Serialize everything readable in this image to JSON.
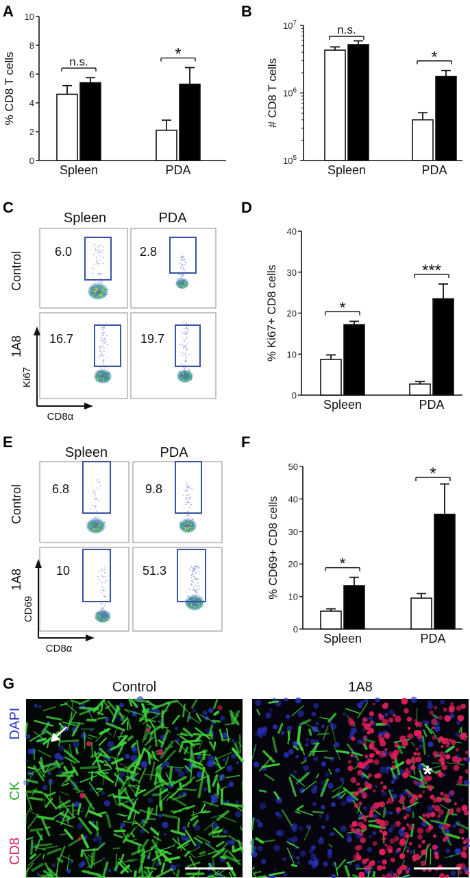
{
  "panel_labels": {
    "A": "A",
    "B": "B",
    "C": "C",
    "D": "D",
    "E": "E",
    "F": "F",
    "G": "G"
  },
  "colors": {
    "control_bar": "#ffffff",
    "treated_bar": "#000000",
    "gate": "#3a4fa8",
    "ck": "#3fd23a",
    "dapi": "#2a35c8",
    "cd8": "#e0205a"
  },
  "flow_c": {
    "col_headers": [
      "Spleen",
      "PDA"
    ],
    "row_headers": [
      "Control",
      "1A8"
    ],
    "percents": [
      "6.0",
      "2.8",
      "16.7",
      "19.7"
    ],
    "y_axis": "Ki67",
    "x_axis": "CD8α"
  },
  "flow_e": {
    "col_headers": [
      "Spleen",
      "PDA"
    ],
    "row_headers": [
      "Control",
      "1A8"
    ],
    "percents": [
      "6.8",
      "9.8",
      "10",
      "51.3"
    ],
    "y_axis": "CD69",
    "x_axis": "CD8α"
  },
  "images_g": {
    "titles": [
      "Control",
      "1A8"
    ],
    "stain_labels": [
      "DAPI",
      "CK",
      "CD8"
    ]
  },
  "chart_data": [
    {
      "id": "A",
      "type": "bar",
      "categories": [
        "Spleen",
        "PDA"
      ],
      "ylabel": "% CD8 T cells",
      "ylim": [
        0,
        10
      ],
      "yticks": [
        0,
        2,
        4,
        6,
        8,
        10
      ],
      "ytick_labels": [
        "0",
        "2",
        "4",
        "6",
        "8",
        "10"
      ],
      "series": [
        {
          "values": [
            4.6,
            2.1
          ],
          "errors": [
            0.6,
            0.7
          ]
        },
        {
          "values": [
            5.4,
            5.3
          ],
          "errors": [
            0.35,
            1.15
          ]
        }
      ],
      "significance": [
        "n.s.",
        "*"
      ]
    },
    {
      "id": "B",
      "type": "bar",
      "yscale": "log",
      "categories": [
        "Spleen",
        "PDA"
      ],
      "ylabel": "# CD8 T cells",
      "ylim": [
        100000,
        10000000
      ],
      "yticks": [
        100000,
        1000000,
        10000000
      ],
      "ytick_base": "10",
      "ytick_exponents": [
        "5",
        "6",
        "7"
      ],
      "series": [
        {
          "values": [
            4300000,
            400000
          ],
          "errors": [
            500000,
            110000
          ]
        },
        {
          "values": [
            5200000,
            1750000
          ],
          "errors": [
            700000,
            400000
          ]
        }
      ],
      "significance": [
        "n.s.",
        "*"
      ]
    },
    {
      "id": "D",
      "type": "bar",
      "categories": [
        "Spleen",
        "PDA"
      ],
      "ylabel": "% Ki67+ CD8 cells",
      "ylim": [
        0,
        40
      ],
      "yticks": [
        0,
        10,
        20,
        30,
        40
      ],
      "ytick_labels": [
        "0",
        "10",
        "20",
        "30",
        "40"
      ],
      "series": [
        {
          "values": [
            8.7,
            2.7
          ],
          "errors": [
            1.1,
            0.6
          ]
        },
        {
          "values": [
            17.2,
            23.5
          ],
          "errors": [
            0.8,
            3.6
          ]
        }
      ],
      "significance": [
        "*",
        "***"
      ]
    },
    {
      "id": "F",
      "type": "bar",
      "categories": [
        "Spleen",
        "PDA"
      ],
      "ylabel": "% CD69+ CD8 cells",
      "ylim": [
        0,
        50
      ],
      "yticks": [
        0,
        10,
        20,
        30,
        40,
        50
      ],
      "ytick_labels": [
        "0",
        "10",
        "20",
        "30",
        "40",
        "50"
      ],
      "series": [
        {
          "values": [
            5.5,
            9.5
          ],
          "errors": [
            0.7,
            1.4
          ]
        },
        {
          "values": [
            13.3,
            35.3
          ],
          "errors": [
            2.6,
            9.3
          ]
        }
      ],
      "significance": [
        "*",
        "*"
      ]
    }
  ]
}
